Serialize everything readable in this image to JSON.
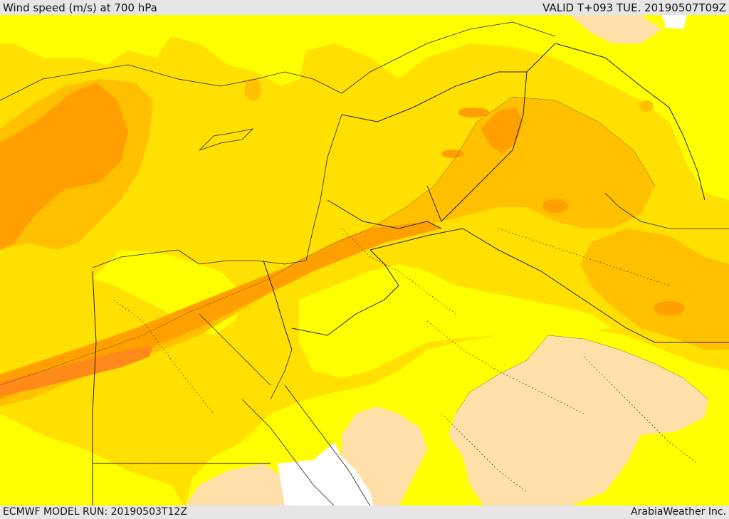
{
  "header": {
    "title": "Wind speed (m/s) at 700 hPa",
    "valid_time": "VALID T+093 TUE. 20190507T09Z"
  },
  "footer": {
    "model_run": "ECMWF MODEL RUN: 20190503T12Z",
    "credit": "ArabiaWeather Inc."
  },
  "colors": {
    "low": "#ffe0a8",
    "band1": "#ffff00",
    "band2": "#ffe000",
    "band3": "#ffc000",
    "band4": "#ffa000",
    "band5": "#ff8a1a",
    "nodata": "#ffffff",
    "lines": "#222222"
  }
}
